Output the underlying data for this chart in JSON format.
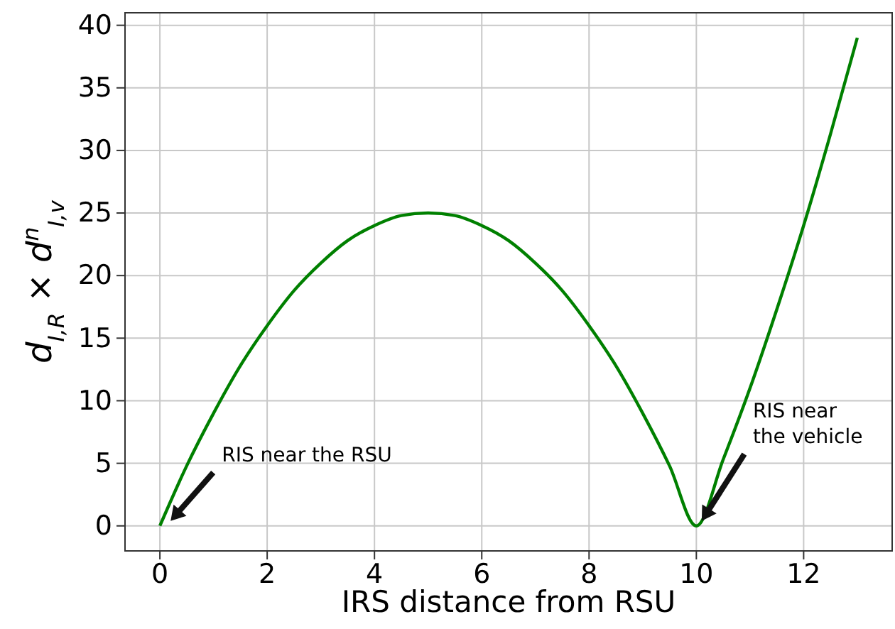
{
  "chart_data": {
    "type": "line",
    "xlabel": "IRS distance from RSU",
    "ylabel": "d$_{I,R}$ × d$^{n}$$_{I,v}$",
    "x": [
      0,
      0.5,
      1,
      1.5,
      2,
      2.5,
      3,
      3.5,
      4,
      4.5,
      5,
      5.5,
      6,
      6.5,
      7,
      7.5,
      8,
      8.5,
      9,
      9.5,
      10,
      10.5,
      11,
      11.5,
      12,
      12.5,
      13
    ],
    "series": [
      {
        "color": "#008000",
        "values": [
          0,
          4.8,
          9,
          12.8,
          16,
          18.8,
          21,
          22.8,
          24,
          24.8,
          25,
          24.8,
          24,
          22.8,
          21,
          18.8,
          16,
          12.8,
          9,
          4.8,
          0,
          5.3,
          11,
          17.3,
          24,
          31.3,
          39
        ]
      }
    ],
    "xlim": [
      -0.65,
      13.65
    ],
    "xticks": [
      0,
      2,
      4,
      6,
      8,
      10,
      12
    ],
    "ylim": [
      -2,
      41
    ],
    "yticks": [
      0,
      5,
      10,
      15,
      20,
      25,
      30,
      35,
      40
    ],
    "grid": true,
    "marker": "none",
    "line_style": "solid",
    "annotations": [
      "RIS near the RSU",
      "RIS near the vehicle"
    ]
  }
}
